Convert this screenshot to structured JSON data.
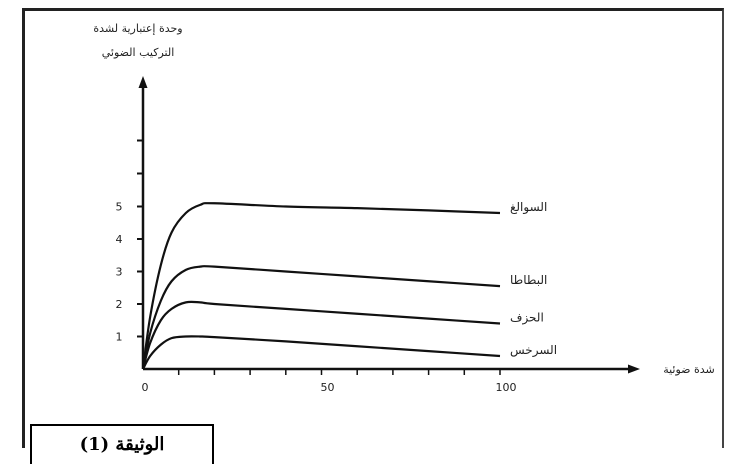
{
  "caption": "الوثيقة (1)",
  "chart_data": {
    "type": "line",
    "ylabel_line1": "وحدة إعتبارية لشدة",
    "ylabel_line2": "التركيب الضوئي",
    "xlabel": "شدة ضوئية",
    "xlim": [
      0,
      100
    ],
    "ylim": [
      0,
      8
    ],
    "x_ticks": [
      0,
      50,
      100
    ],
    "y_ticks": [
      1,
      2,
      3,
      4,
      5
    ],
    "series": [
      {
        "name": "السوالغ",
        "x": [
          0,
          2,
          5,
          8,
          12,
          16,
          20,
          40,
          60,
          80,
          100
        ],
        "y": [
          0,
          1.6,
          3.2,
          4.2,
          4.8,
          5.05,
          5.1,
          5.0,
          4.95,
          4.88,
          4.8
        ]
      },
      {
        "name": "البطاطا",
        "x": [
          0,
          2,
          5,
          8,
          12,
          16,
          20,
          40,
          60,
          80,
          100
        ],
        "y": [
          0,
          1.1,
          2.1,
          2.7,
          3.05,
          3.15,
          3.15,
          3.0,
          2.85,
          2.7,
          2.55
        ]
      },
      {
        "name": "الحزف",
        "x": [
          0,
          2,
          5,
          8,
          12,
          16,
          20,
          40,
          60,
          80,
          100
        ],
        "y": [
          0,
          0.8,
          1.5,
          1.85,
          2.05,
          2.05,
          2.0,
          1.85,
          1.7,
          1.55,
          1.4
        ]
      },
      {
        "name": "السرخس",
        "x": [
          0,
          2,
          5,
          8,
          12,
          16,
          20,
          40,
          60,
          80,
          100
        ],
        "y": [
          0,
          0.4,
          0.75,
          0.95,
          1.0,
          1.0,
          0.98,
          0.85,
          0.7,
          0.55,
          0.4
        ]
      }
    ]
  }
}
